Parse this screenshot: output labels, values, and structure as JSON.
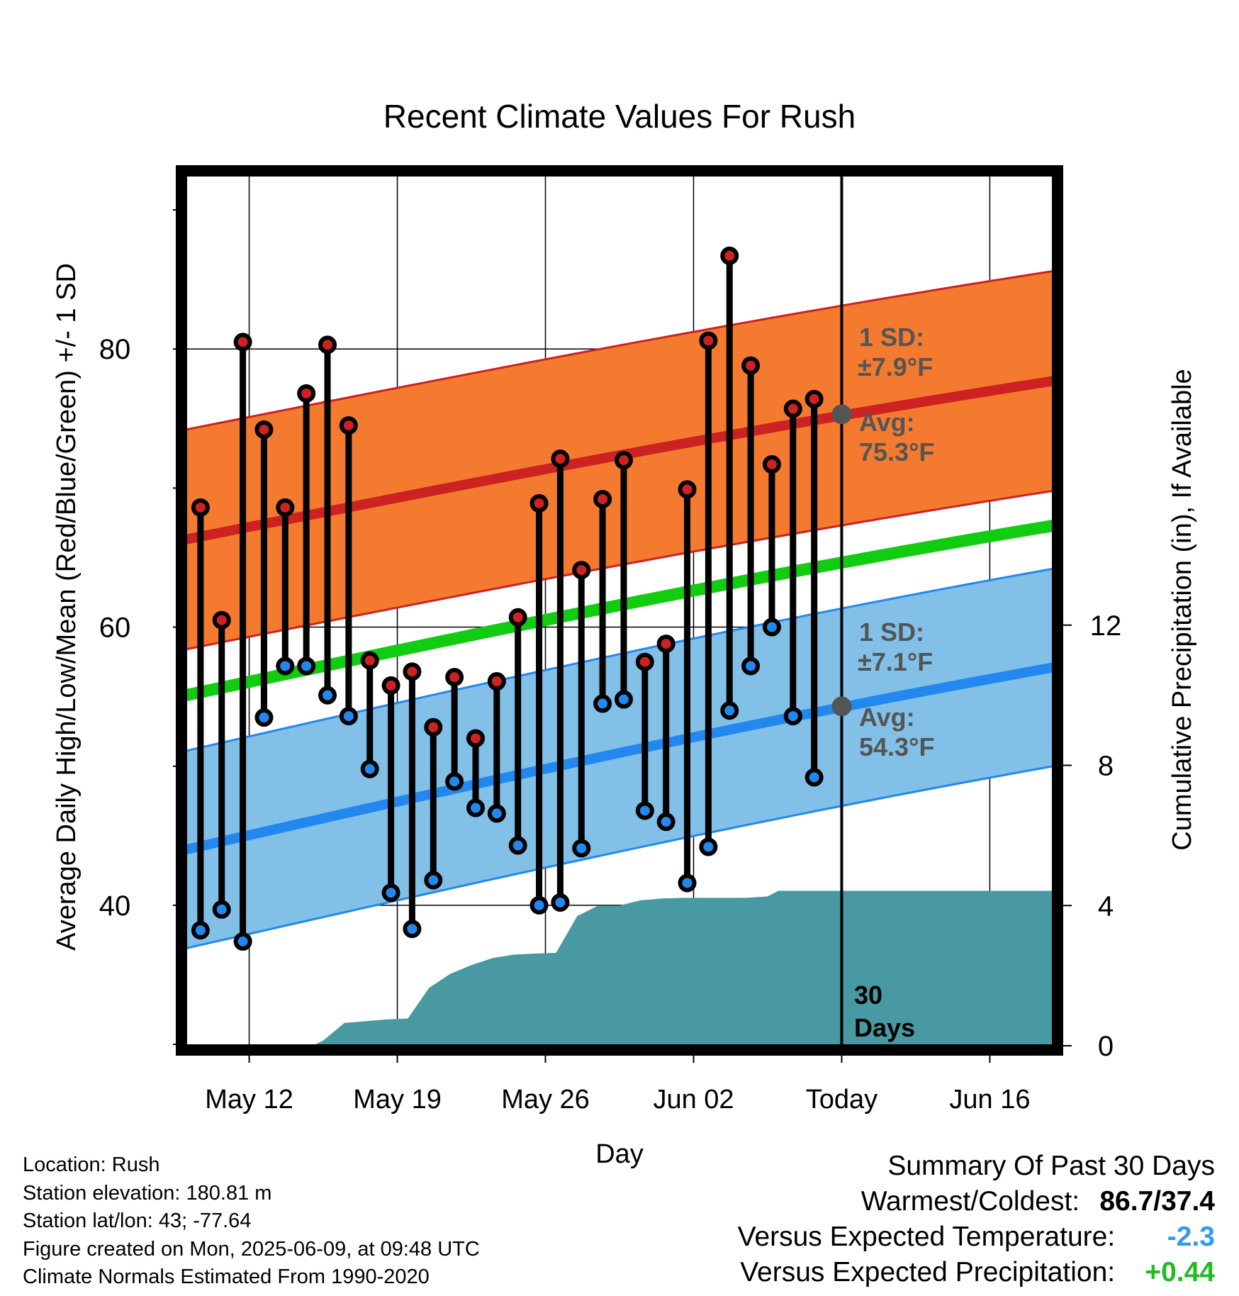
{
  "chart_data": {
    "type": "line",
    "title": "Recent Climate Values For Rush",
    "xlabel": "Day",
    "ylabel_left": "Average Daily High/Low/Mean (Red/Blue/Green) +/- 1 SD",
    "ylabel_right": "Cumulative Precipitation (in), If Available",
    "x_ticks": [
      "May 12",
      "May 19",
      "May 26",
      "Jun 02",
      "Today",
      "Jun 16"
    ],
    "x_tick_days": [
      3,
      10,
      17,
      24,
      31,
      38
    ],
    "x_range_days": [
      0,
      41
    ],
    "y_left_ticks": [
      "40",
      "60",
      "80"
    ],
    "y_left_tick_values": [
      40,
      60,
      80
    ],
    "ylim_left": [
      29.9,
      92.5
    ],
    "y_right_ticks": [
      "0",
      "4",
      "8",
      "12"
    ],
    "y_right_tick_values": [
      0,
      4,
      8,
      12
    ],
    "ylim_right": [
      0,
      24.84
    ],
    "normal_high": {
      "start": 66.3,
      "end": 77.7,
      "sd": 7.9
    },
    "normal_low": {
      "start": 44.0,
      "end": 57.1,
      "sd": 7.1
    },
    "normal_mean": {
      "start": 55.1,
      "end": 67.3
    },
    "daily_obs": [
      {
        "day": 0.7,
        "high": 68.6,
        "low": 38.2
      },
      {
        "day": 1.7,
        "high": 60.5,
        "low": 39.7
      },
      {
        "day": 2.7,
        "high": 80.5,
        "low": 37.4
      },
      {
        "day": 3.7,
        "high": 74.2,
        "low": 53.5
      },
      {
        "day": 4.7,
        "high": 68.6,
        "low": 57.2
      },
      {
        "day": 5.7,
        "high": 76.8,
        "low": 57.2
      },
      {
        "day": 6.7,
        "high": 80.3,
        "low": 55.1
      },
      {
        "day": 7.7,
        "high": 74.5,
        "low": 53.6
      },
      {
        "day": 8.7,
        "high": 57.6,
        "low": 49.8
      },
      {
        "day": 9.7,
        "high": 55.8,
        "low": 40.9
      },
      {
        "day": 10.7,
        "high": 56.8,
        "low": 38.3
      },
      {
        "day": 11.7,
        "high": 52.8,
        "low": 41.8
      },
      {
        "day": 12.7,
        "high": 56.4,
        "low": 48.9
      },
      {
        "day": 13.7,
        "high": 52.0,
        "low": 47.0
      },
      {
        "day": 14.7,
        "high": 56.1,
        "low": 46.6
      },
      {
        "day": 15.7,
        "high": 60.7,
        "low": 44.3
      },
      {
        "day": 16.7,
        "high": 68.9,
        "low": 40.0
      },
      {
        "day": 17.7,
        "high": 72.1,
        "low": 40.2
      },
      {
        "day": 18.7,
        "high": 64.1,
        "low": 44.1
      },
      {
        "day": 19.7,
        "high": 69.2,
        "low": 54.5
      },
      {
        "day": 20.7,
        "high": 72.0,
        "low": 54.8
      },
      {
        "day": 21.7,
        "high": 57.5,
        "low": 46.8
      },
      {
        "day": 22.7,
        "high": 58.8,
        "low": 46.0
      },
      {
        "day": 23.7,
        "high": 69.9,
        "low": 41.6
      },
      {
        "day": 24.7,
        "high": 80.6,
        "low": 44.2
      },
      {
        "day": 25.7,
        "high": 86.7,
        "low": 54.0
      },
      {
        "day": 26.7,
        "high": 78.8,
        "low": 57.2
      },
      {
        "day": 27.7,
        "high": 71.7,
        "low": 60.0
      },
      {
        "day": 28.7,
        "high": 75.7,
        "low": 53.6
      },
      {
        "day": 29.7,
        "high": 76.4,
        "low": 49.2
      }
    ],
    "precip_cumulative": [
      {
        "day": 0.0,
        "value": 0.0
      },
      {
        "day": 6.0,
        "value": 0.0
      },
      {
        "day": 6.5,
        "value": 0.15
      },
      {
        "day": 7.5,
        "value": 0.65
      },
      {
        "day": 8.5,
        "value": 0.7
      },
      {
        "day": 9.5,
        "value": 0.75
      },
      {
        "day": 10.5,
        "value": 0.78
      },
      {
        "day": 11.5,
        "value": 1.65
      },
      {
        "day": 12.5,
        "value": 2.05
      },
      {
        "day": 13.5,
        "value": 2.3
      },
      {
        "day": 14.5,
        "value": 2.5
      },
      {
        "day": 15.5,
        "value": 2.6
      },
      {
        "day": 16.5,
        "value": 2.63
      },
      {
        "day": 17.5,
        "value": 2.65
      },
      {
        "day": 18.5,
        "value": 3.7
      },
      {
        "day": 19.5,
        "value": 4.0
      },
      {
        "day": 20.5,
        "value": 4.0
      },
      {
        "day": 21.5,
        "value": 4.15
      },
      {
        "day": 22.5,
        "value": 4.2
      },
      {
        "day": 23.5,
        "value": 4.22
      },
      {
        "day": 24.5,
        "value": 4.22
      },
      {
        "day": 26.5,
        "value": 4.22
      },
      {
        "day": 27.5,
        "value": 4.26
      },
      {
        "day": 28.0,
        "value": 4.42
      },
      {
        "day": 30.0,
        "value": 4.42
      },
      {
        "day": 41.0,
        "value": 4.42
      }
    ],
    "today_day": 31,
    "today_high_avg": 75.3,
    "today_low_avg": 54.3,
    "annotations": {
      "high_sd_label": "1 SD:",
      "high_sd_value": "±7.9°F",
      "high_avg_label": "Avg:",
      "high_avg_value": "75.3°F",
      "low_sd_label": "1 SD:",
      "low_sd_value": "±7.1°F",
      "low_avg_label": "Avg:",
      "low_avg_value": "54.3°F",
      "days_num": "30",
      "days_word": "Days"
    },
    "grid": true,
    "colors": {
      "high_band": "#f47a30",
      "high_band_edge": "#cc2222",
      "high_avg_line": "#cc2222",
      "low_band": "#82c0e8",
      "low_band_edge": "#2288ee",
      "low_avg_line": "#2288ee",
      "mean_line": "#11cc11",
      "precip_fill": "#4899a1",
      "high_dot": "#cc2222",
      "low_dot": "#2288ee",
      "annotation_text": "#555555"
    }
  },
  "footer": {
    "location": "Location: Rush",
    "elevation": "Station elevation: 180.81 m",
    "latlon": "Station lat/lon: 43; -77.64",
    "created": "Figure created on Mon, 2025-06-09, at 09:48 UTC",
    "normals": "Climate Normals Estimated From 1990-2020"
  },
  "summary": {
    "title": "Summary Of Past 30 Days",
    "warm_cold_label": "Warmest/Coldest:",
    "warm_cold_value": "86.7/37.4",
    "temp_label": "Versus Expected Temperature:",
    "temp_value": "-2.3",
    "temp_color": "#3399ee",
    "precip_label": "Versus Expected Precipitation:",
    "precip_value": "+0.44",
    "precip_color": "#22bb22"
  }
}
